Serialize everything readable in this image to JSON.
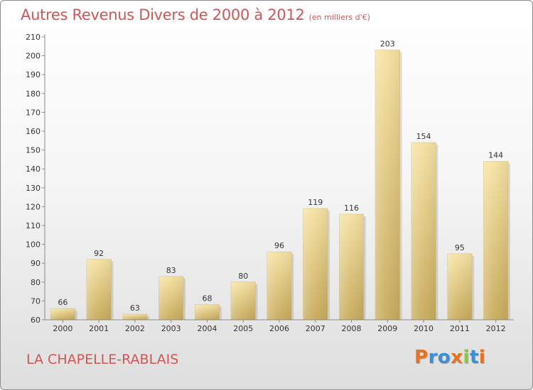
{
  "header": {
    "title": "Autres Revenus Divers de 2000 à 2012",
    "subtitle": "(en milliers d'€)"
  },
  "footer": {
    "place": "LA CHAPELLE-RABLAIS",
    "logo": "Proxiti"
  },
  "colors": {
    "title": "#d05656",
    "bar_light": "#f6e2a2",
    "bar_dark": "#c8ab5c",
    "logo_letters": [
      "#e8731c",
      "#3a8fd6",
      "#3a8fd6",
      "#e8731c",
      "#8cc63f",
      "#3a8fd6",
      "#e8731c"
    ]
  },
  "chart_data": {
    "type": "bar",
    "title": "Autres Revenus Divers de 2000 à 2012",
    "subtitle": "(en milliers d'€)",
    "xlabel": "",
    "ylabel": "",
    "categories": [
      "2000",
      "2001",
      "2002",
      "2003",
      "2004",
      "2005",
      "2006",
      "2007",
      "2008",
      "2009",
      "2010",
      "2011",
      "2012"
    ],
    "values": [
      66,
      92,
      63,
      83,
      68,
      80,
      96,
      119,
      116,
      203,
      154,
      95,
      144
    ],
    "data_labels": [
      "66",
      "92",
      "63",
      "83",
      "68",
      "80",
      "96",
      "119",
      "116",
      "203",
      "154",
      "95",
      "144"
    ],
    "ylim": [
      60,
      210
    ],
    "yticks": [
      60,
      70,
      80,
      90,
      100,
      110,
      120,
      130,
      140,
      150,
      160,
      170,
      180,
      190,
      200,
      210
    ],
    "grid": false,
    "legend": "none"
  }
}
